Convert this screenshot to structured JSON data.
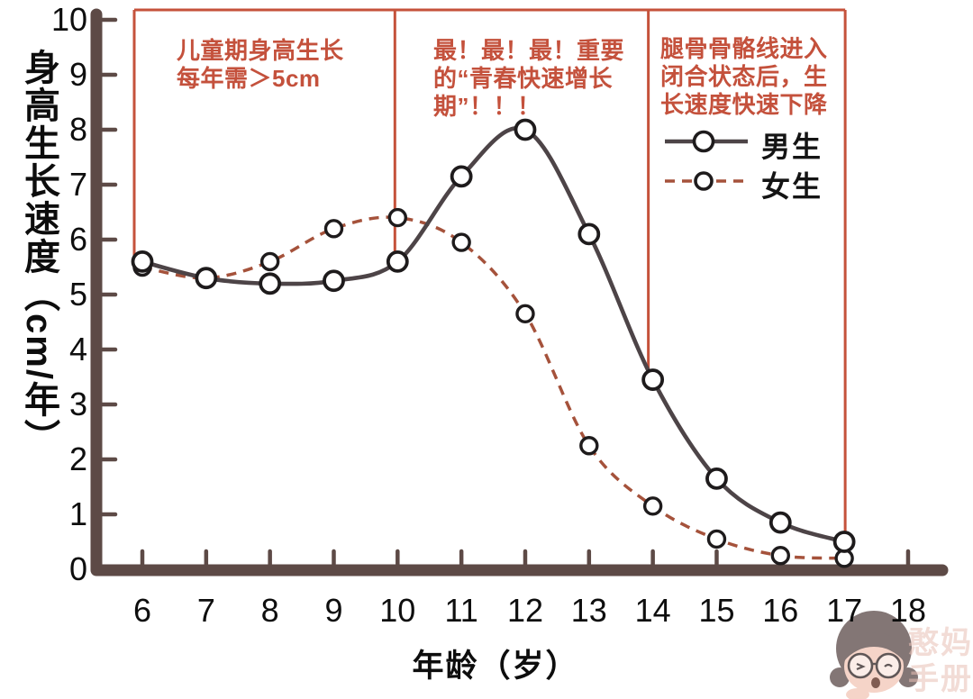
{
  "watermark": {
    "line1": "憨妈",
    "line2": "手册"
  },
  "chart_data": {
    "type": "line",
    "title": "",
    "x_label": "年龄（岁）",
    "y_label": "身高生长速度（cm/年）",
    "x_range": [
      6,
      18
    ],
    "y_range": [
      0,
      10
    ],
    "x_ticks": [
      6,
      7,
      8,
      9,
      10,
      11,
      12,
      13,
      14,
      15,
      16,
      17,
      18
    ],
    "y_ticks": [
      0,
      1,
      2,
      3,
      4,
      5,
      6,
      7,
      8,
      9,
      10
    ],
    "grid": false,
    "legend_position": "top-right",
    "x": [
      6,
      7,
      8,
      9,
      10,
      11,
      12,
      13,
      14,
      15,
      16,
      17
    ],
    "series": [
      {
        "name": "男生",
        "line_style": "solid",
        "marker": "open-circle",
        "color": "#4d4447",
        "values": [
          5.6,
          5.3,
          5.2,
          5.25,
          5.6,
          7.15,
          8.0,
          6.1,
          3.45,
          1.65,
          0.85,
          0.5
        ]
      },
      {
        "name": "女生",
        "line_style": "dashed",
        "marker": "open-circle",
        "color": "#a5523b",
        "values": [
          5.5,
          5.3,
          5.6,
          6.2,
          6.4,
          5.95,
          4.65,
          2.25,
          1.15,
          0.55,
          0.25,
          0.2
        ]
      }
    ],
    "annotations": [
      {
        "id": "childhood",
        "lines": [
          "儿童期身高生长",
          "每年需＞5cm"
        ]
      },
      {
        "id": "puberty",
        "lines": [
          "最！最！最！重要",
          "的“青春快速增长",
          "期”！！！"
        ]
      },
      {
        "id": "closure",
        "lines": [
          "腿骨骨骼线进入",
          "闭合状态后，生",
          "长速度快速下降"
        ]
      }
    ],
    "guide_lines": {
      "color": "#c5523b",
      "top_span_ages": [
        6,
        17
      ],
      "verticals": [
        {
          "age": 6,
          "down_to_value": 5.6
        },
        {
          "age": 10,
          "down_to_value": 5.5
        },
        {
          "age": 14,
          "down_to_value": 3.45
        },
        {
          "age": 17,
          "down_to_value": 0.5
        }
      ]
    },
    "colors": {
      "axis": "#5d4a46",
      "tick_text": "#0e0e0e",
      "annotation_text": "#c4513c",
      "background": "#ffffff"
    }
  }
}
